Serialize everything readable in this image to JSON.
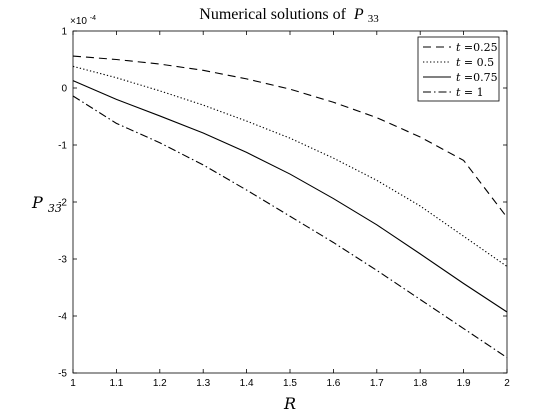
{
  "chart_data": {
    "type": "line",
    "title": "Numerical solutions of",
    "title_math": "P",
    "title_math_sub": "33",
    "xlabel": "R",
    "ylabel": "P",
    "ylabel_sub": "33",
    "y_multiplier": "×10",
    "y_multiplier_exp": "-4",
    "xlim": [
      1,
      2
    ],
    "ylim": [
      -5,
      1
    ],
    "xticks": [
      "1",
      "1.1",
      "1.2",
      "1.3",
      "1.4",
      "1.5",
      "1.6",
      "1.7",
      "1.8",
      "1.9",
      "2"
    ],
    "yticks": [
      "-5",
      "-4",
      "-3",
      "-2",
      "-1",
      "0",
      "1"
    ],
    "grid": false,
    "legend_position": "top-right",
    "x": [
      1.0,
      1.1,
      1.2,
      1.3,
      1.4,
      1.5,
      1.6,
      1.7,
      1.8,
      1.9,
      2.0
    ],
    "series": [
      {
        "name_prefix": "t =",
        "name_value": "0.25",
        "style": "dashed",
        "values": [
          0.56,
          0.5,
          0.42,
          0.31,
          0.16,
          -0.02,
          -0.25,
          -0.52,
          -0.86,
          -1.27,
          -2.27
        ]
      },
      {
        "name_prefix": "t =",
        "name_value": " 0.5",
        "style": "dotted",
        "values": [
          0.38,
          0.18,
          -0.05,
          -0.3,
          -0.58,
          -0.88,
          -1.23,
          -1.62,
          -2.07,
          -2.6,
          -3.13
        ]
      },
      {
        "name_prefix": "t =",
        "name_value": "0.75",
        "style": "solid",
        "values": [
          0.13,
          -0.2,
          -0.49,
          -0.79,
          -1.13,
          -1.51,
          -1.94,
          -2.4,
          -2.91,
          -3.43,
          -3.93
        ]
      },
      {
        "name_prefix": "t =",
        "name_value": " 1",
        "style": "dashdot",
        "values": [
          -0.14,
          -0.62,
          -0.96,
          -1.35,
          -1.79,
          -2.25,
          -2.71,
          -3.2,
          -3.71,
          -4.22,
          -4.73
        ]
      }
    ]
  }
}
